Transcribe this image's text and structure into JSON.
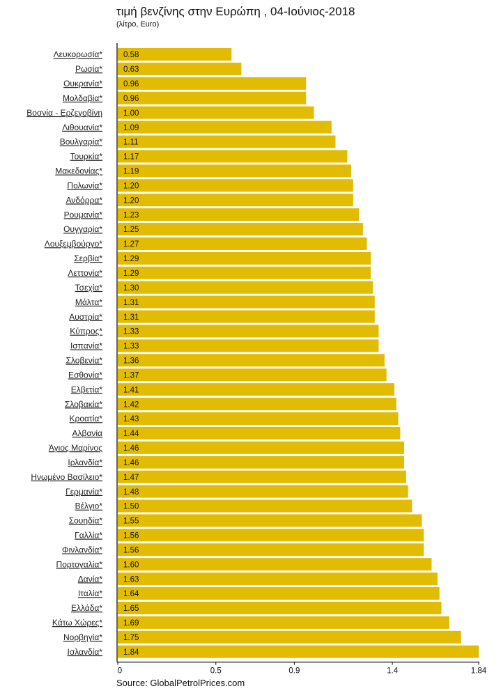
{
  "chart_data": {
    "type": "bar",
    "orientation": "horizontal",
    "title": "τιμή βενζίνης στην Ευρώπη , 04-Ιούνιος-2018",
    "subtitle": "(λίτρο, Euro)",
    "xlabel": "",
    "ylabel": "",
    "xlim": [
      0,
      1.84
    ],
    "xticks": [
      0,
      0.5,
      0.9,
      1.4,
      1.84
    ],
    "xtick_labels": [
      "0",
      "0.5",
      "0.9",
      "1.4",
      "1.84"
    ],
    "grid": false,
    "bar_color": "#E1BC03",
    "categories": [
      "Λευκορωσία*",
      "Ρωσία*",
      "Ουκρανία*",
      "Μολδαβία*",
      "Βοσνία - Ερζεγοβίνη ",
      "Λιθουανία*",
      "Βουλγαρία*",
      "Τουρκία*",
      "Μακεδονίας*",
      "Πολωνία*",
      "Ανδόρρα*",
      "Ρουμανία*",
      "Ουγγαρία*",
      "Λουξεμβούργο*",
      "Σερβία*",
      "Λεττονία*",
      "Τσεχία*",
      "Μάλτα*",
      "Αυστρία*",
      "Κύπρος*",
      "Ισπανία*",
      "Σλοβενία*",
      "Εσθονία*",
      "Ελβετία*",
      "Σλοβακία*",
      "Κροατία*",
      "Αλβανία ",
      "Άγιος Μαρίνος ",
      "Ιρλανδία*",
      "Ηνωμένο Βασίλειο*",
      "Γερμανία*",
      "Βέλγιο*",
      "Σουηδία*",
      "Γαλλία*",
      "Φινλανδία*",
      "Πορτογαλία*",
      "Δανία*",
      "Ιταλία*",
      "Ελλάδα*",
      "Κάτω Χώρες*",
      "Νορβηγία*",
      "Ισλανδία*"
    ],
    "values": [
      0.58,
      0.63,
      0.96,
      0.96,
      1.0,
      1.09,
      1.11,
      1.17,
      1.19,
      1.2,
      1.2,
      1.23,
      1.25,
      1.27,
      1.29,
      1.29,
      1.3,
      1.31,
      1.31,
      1.33,
      1.33,
      1.36,
      1.37,
      1.41,
      1.42,
      1.43,
      1.44,
      1.46,
      1.46,
      1.47,
      1.48,
      1.5,
      1.55,
      1.56,
      1.56,
      1.6,
      1.63,
      1.64,
      1.65,
      1.69,
      1.75,
      1.84
    ],
    "value_labels": [
      "0.58",
      "0.63",
      "0.96",
      "0.96",
      "1.00",
      "1.09",
      "1.11",
      "1.17",
      "1.19",
      "1.20",
      "1.20",
      "1.23",
      "1.25",
      "1.27",
      "1.29",
      "1.29",
      "1.30",
      "1.31",
      "1.31",
      "1.33",
      "1.33",
      "1.36",
      "1.37",
      "1.41",
      "1.42",
      "1.43",
      "1.44",
      "1.46",
      "1.46",
      "1.47",
      "1.48",
      "1.50",
      "1.55",
      "1.56",
      "1.56",
      "1.60",
      "1.63",
      "1.64",
      "1.65",
      "1.69",
      "1.75",
      "1.84"
    ],
    "source": "Source: GlobalPetrolPrices.com"
  }
}
